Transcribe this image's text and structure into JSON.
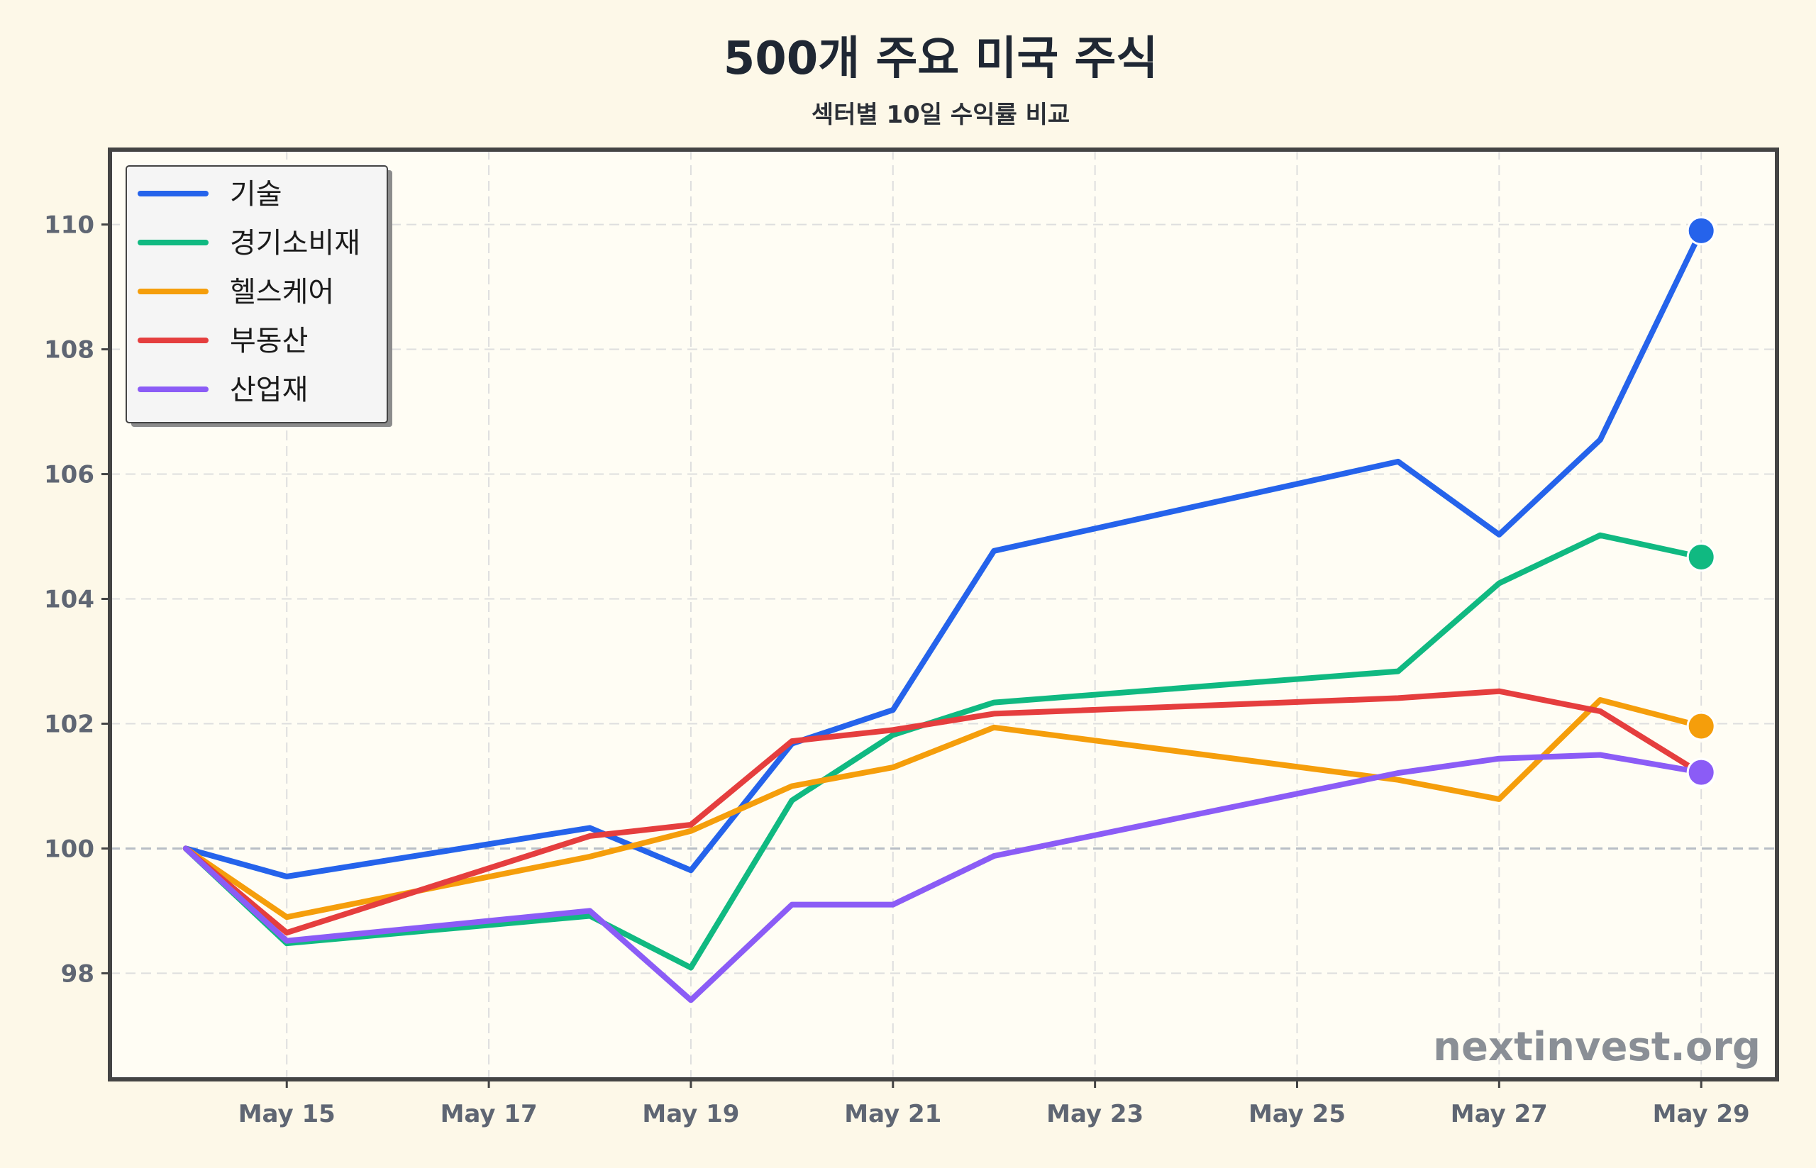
{
  "chart_data": {
    "type": "line",
    "title": "500개 주요 미국 주식",
    "subtitle": "섹터별 10일 수익률 비교",
    "xlabel": "",
    "ylabel": "",
    "x": [
      "May 14",
      "May 15",
      "May 18",
      "May 19",
      "May 20",
      "May 21",
      "May 22",
      "May 26",
      "May 27",
      "May 28",
      "May 29"
    ],
    "x_day_numbers": [
      14,
      15,
      18,
      19,
      20,
      21,
      22,
      26,
      27,
      28,
      29
    ],
    "xticks": [
      "May 15",
      "May 17",
      "May 19",
      "May 21",
      "May 23",
      "May 25",
      "May 27",
      "May 29"
    ],
    "xtick_day_numbers": [
      15,
      17,
      19,
      21,
      23,
      25,
      27,
      29
    ],
    "yticks": [
      "98",
      "100",
      "102",
      "104",
      "106",
      "108",
      "110"
    ],
    "ytick_values": [
      98,
      100,
      102,
      104,
      106,
      108,
      110
    ],
    "ylim": [
      96.3,
      111.2
    ],
    "xlim_day_numbers": [
      13.25,
      29.75
    ],
    "baseline": 100,
    "grid": true,
    "legend_position": "top-left",
    "series": [
      {
        "name": "기술",
        "color": "#2563eb",
        "values": [
          100,
          99.55,
          100.33,
          99.65,
          101.68,
          102.22,
          104.77,
          106.2,
          105.03,
          106.55,
          109.9
        ]
      },
      {
        "name": "경기소비재",
        "color": "#10b981",
        "values": [
          100,
          98.48,
          98.92,
          98.09,
          100.77,
          101.82,
          102.34,
          102.84,
          104.25,
          105.02,
          104.67
        ]
      },
      {
        "name": "헬스케어",
        "color": "#f59e0b",
        "values": [
          100,
          98.9,
          99.87,
          100.28,
          101.0,
          101.3,
          101.94,
          101.1,
          100.79,
          102.38,
          101.96
        ]
      },
      {
        "name": "부동산",
        "color": "#e53e3e",
        "values": [
          100,
          98.65,
          100.2,
          100.38,
          101.72,
          101.9,
          102.16,
          102.41,
          102.52,
          102.2,
          101.2
        ]
      },
      {
        "name": "산업재",
        "color": "#8b5cf6",
        "values": [
          100,
          98.52,
          99.0,
          97.57,
          99.1,
          99.1,
          99.88,
          101.21,
          101.44,
          101.5,
          101.22
        ]
      }
    ],
    "watermark": "nextinvest.org"
  }
}
